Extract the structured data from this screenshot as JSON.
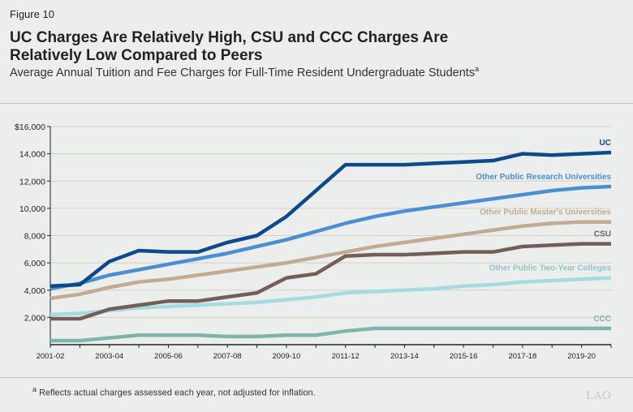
{
  "figure_label": "Figure 10",
  "title": "UC Charges Are Relatively High, CSU and CCC Charges Are Relatively Low Compared to Peers",
  "subtitle": "Average Annual Tuition and Fee Charges for Full-Time Resident Undergraduate Students",
  "subtitle_note": "a",
  "footnote_marker": "a",
  "footnote": "Reflects actual charges assessed each year, not adjusted for inflation.",
  "logo": "LAO",
  "chart_data": {
    "type": "line",
    "ylim": [
      0,
      16000
    ],
    "yticks": [
      2000,
      4000,
      6000,
      8000,
      10000,
      12000,
      14000,
      16000
    ],
    "ytick_labels": [
      "2,000",
      "4,000",
      "6,000",
      "8,000",
      "10,000",
      "12,000",
      "14,000",
      "$16,000"
    ],
    "grid": "horizontal",
    "x": [
      "2001-02",
      "2002-03",
      "2003-04",
      "2004-05",
      "2005-06",
      "2006-07",
      "2007-08",
      "2008-09",
      "2009-10",
      "2010-11",
      "2011-12",
      "2012-13",
      "2013-14",
      "2014-15",
      "2015-16",
      "2016-17",
      "2017-18",
      "2018-19",
      "2019-20",
      "2020-21"
    ],
    "xtick_labels": [
      "2001-02",
      "2003-04",
      "2005-06",
      "2007-08",
      "2009-10",
      "2011-12",
      "2013-14",
      "2015-16",
      "2017-18",
      "2019-20"
    ],
    "series": [
      {
        "name": "UC",
        "color": "#0d4a8c",
        "values": [
          4300,
          4400,
          6100,
          6900,
          6800,
          6800,
          7500,
          8000,
          9400,
          11300,
          13200,
          13200,
          13200,
          13300,
          13400,
          13500,
          14000,
          13900,
          14000,
          14100
        ]
      },
      {
        "name": "Other Public Research Universities",
        "color": "#4a8fd2",
        "values": [
          4100,
          4500,
          5100,
          5500,
          5900,
          6300,
          6700,
          7200,
          7700,
          8300,
          8900,
          9400,
          9800,
          10100,
          10400,
          10700,
          11000,
          11300,
          11500,
          11600
        ]
      },
      {
        "name": "Other Public Master's Universities",
        "color": "#c2ab92",
        "values": [
          3400,
          3700,
          4200,
          4600,
          4800,
          5100,
          5400,
          5700,
          6000,
          6400,
          6800,
          7200,
          7500,
          7800,
          8100,
          8400,
          8700,
          8900,
          9000,
          9000
        ]
      },
      {
        "name": "CSU",
        "color": "#745e5a",
        "values": [
          1900,
          1900,
          2600,
          2900,
          3200,
          3200,
          3500,
          3800,
          4900,
          5200,
          6500,
          6600,
          6600,
          6700,
          6800,
          6800,
          7200,
          7300,
          7400,
          7400
        ]
      },
      {
        "name": "Other Public Two-Year Colleges",
        "color": "#a3dbe0",
        "label_color": "#93c4c8",
        "values": [
          2200,
          2300,
          2500,
          2700,
          2800,
          2900,
          3000,
          3100,
          3300,
          3500,
          3800,
          3900,
          4000,
          4100,
          4300,
          4400,
          4600,
          4700,
          4800,
          4900
        ]
      },
      {
        "name": "CCC",
        "color": "#7db5aa",
        "values": [
          300,
          300,
          500,
          700,
          700,
          700,
          600,
          600,
          700,
          700,
          1000,
          1200,
          1200,
          1200,
          1200,
          1200,
          1200,
          1200,
          1200,
          1200
        ]
      }
    ]
  }
}
